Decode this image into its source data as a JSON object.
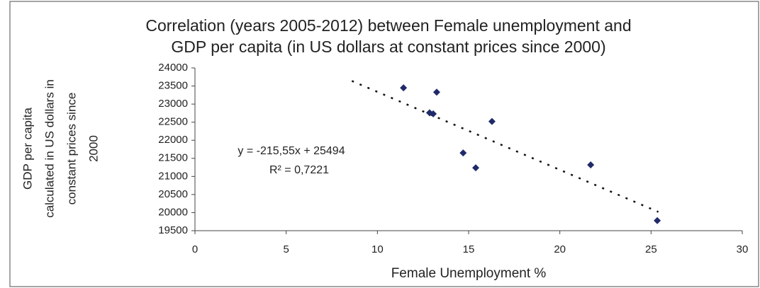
{
  "chart_data": {
    "type": "scatter",
    "title": [
      "Correlation (years 2005-2012) between Female unemployment and",
      "GDP per capita (in US dollars at constant prices since 2000)"
    ],
    "x_label": "Female Unemployment %",
    "y_label": [
      "GDP per capita",
      "calculated in US dollars in",
      "constant prices since",
      "2000"
    ],
    "series": [
      {
        "color": "#1f2a6b",
        "x": [
          11.43,
          13.25,
          12.86,
          13.06,
          16.28,
          14.7,
          15.39,
          21.69,
          25.34
        ],
        "values": [
          23450,
          23330,
          22760,
          22730,
          22520,
          21650,
          21240,
          21320,
          19780
        ]
      }
    ],
    "trendline": {
      "equation": "y = -215,55x + 25494",
      "r2_label": "R² = 0,7221",
      "slope": -215.55,
      "intercept": 25494,
      "x": [
        8.6,
        25.4
      ]
    },
    "xlim": [
      0,
      30
    ],
    "xticks": [
      0,
      5,
      10,
      15,
      20,
      25,
      30
    ],
    "ylim": [
      19500,
      24000
    ],
    "yticks": [
      19500,
      20000,
      20500,
      21000,
      21500,
      22000,
      22500,
      23000,
      23500,
      24000
    ],
    "grid": false
  }
}
